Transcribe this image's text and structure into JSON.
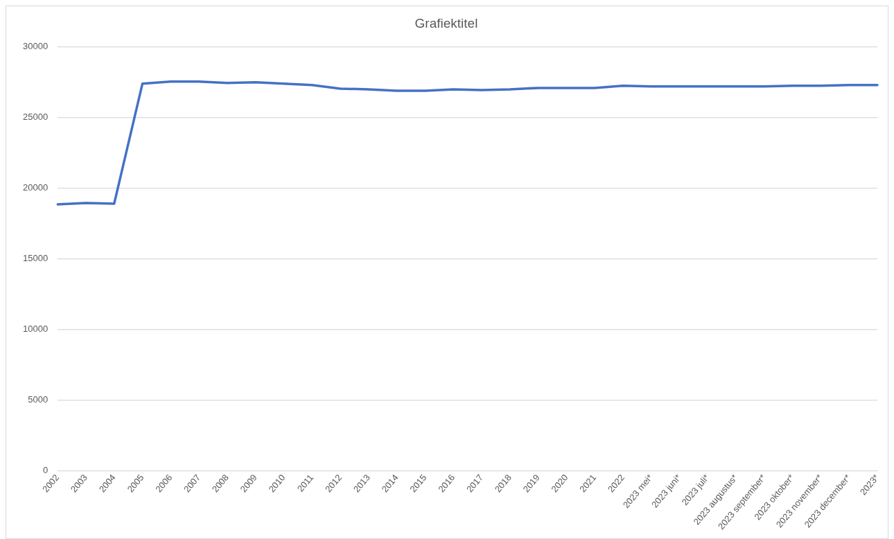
{
  "chart_data": {
    "type": "line",
    "title": "Grafiektitel",
    "categories": [
      "2002",
      "2003",
      "2004",
      "2005",
      "2006",
      "2007",
      "2008",
      "2009",
      "2010",
      "2011",
      "2012",
      "2013",
      "2014",
      "2015",
      "2016",
      "2017",
      "2018",
      "2019",
      "2020",
      "2021",
      "2022",
      "2023 mei*",
      "2023 juni*",
      "2023 juli*",
      "2023 augustus*",
      "2023 september*",
      "2023 oktober*",
      "2023 november*",
      "2023 december*",
      "2023*"
    ],
    "series": [
      {
        "color": "#4472c4",
        "values": [
          18850,
          18950,
          18900,
          27400,
          27550,
          27550,
          27450,
          27500,
          27400,
          27300,
          27050,
          27000,
          26900,
          26900,
          27000,
          26950,
          27000,
          27100,
          27100,
          27100,
          27250,
          27200,
          27200,
          27200,
          27200,
          27200,
          27250,
          27250,
          27300,
          27300
        ]
      }
    ],
    "ylim": [
      0,
      30000
    ],
    "yticks": [
      0,
      5000,
      10000,
      15000,
      20000,
      25000,
      30000
    ],
    "grid": "y",
    "legend": false,
    "marker": "none",
    "line_style": "solid"
  }
}
